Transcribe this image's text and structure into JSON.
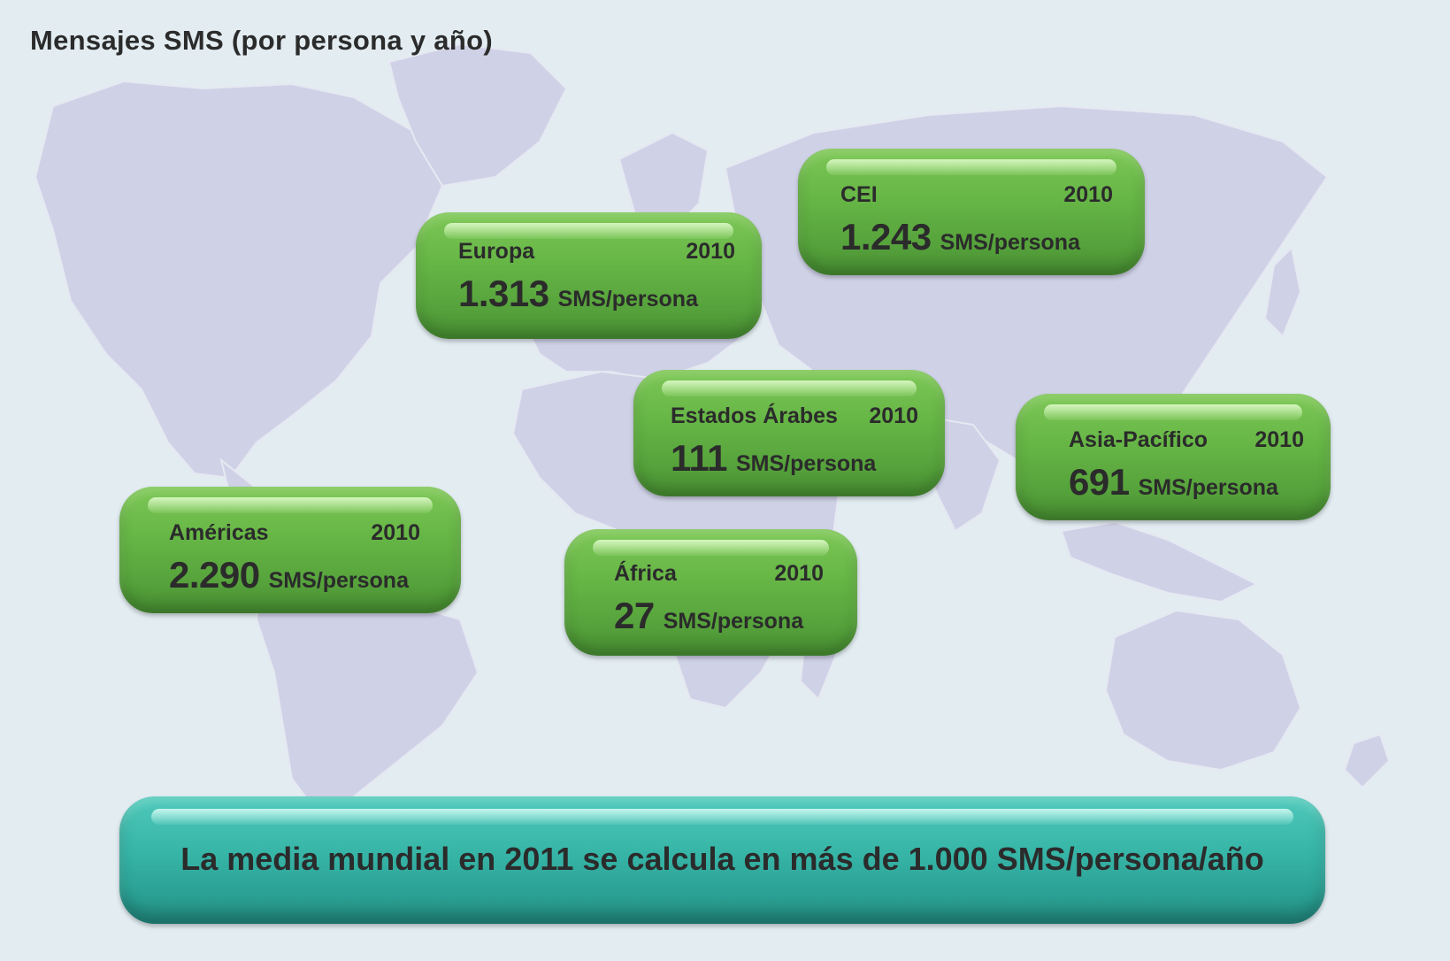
{
  "title": "Mensajes SMS (por persona y año)",
  "regions": [
    {
      "name": "Américas",
      "year": "2010",
      "value": "2.290",
      "unit": "SMS/persona"
    },
    {
      "name": "Europa",
      "year": "2010",
      "value": "1.313",
      "unit": "SMS/persona"
    },
    {
      "name": "CEI",
      "year": "2010",
      "value": "1.243",
      "unit": "SMS/persona"
    },
    {
      "name": "Estados Árabes",
      "year": "2010",
      "value": "111",
      "unit": "SMS/persona"
    },
    {
      "name": "Asia-Pacífico",
      "year": "2010",
      "value": "691",
      "unit": "SMS/persona"
    },
    {
      "name": "África",
      "year": "2010",
      "value": "27",
      "unit": "SMS/persona"
    }
  ],
  "footer": "La media mundial en 2011 se calcula en más de 1.000 SMS/persona/año",
  "colors": {
    "background": "#e2ecf1",
    "land": "#cfd1e6",
    "box": "#66b646",
    "footer_box": "#36b5a7",
    "text": "#2b2b2b"
  }
}
